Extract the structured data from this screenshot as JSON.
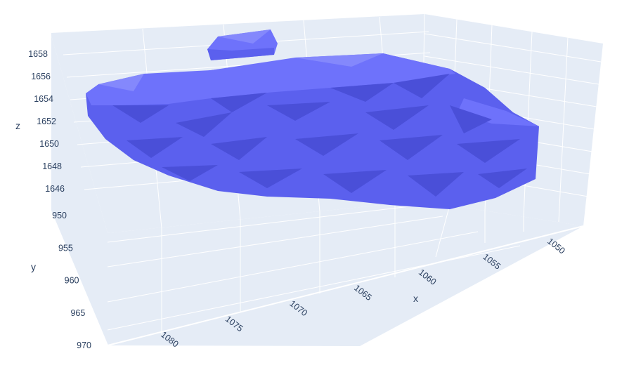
{
  "chart_data": {
    "type": "mesh3d",
    "title": "",
    "colors": {
      "mesh_top": "#6e72fb",
      "mesh_side": "#5b60ee",
      "mesh_shadow": "#4a4fd8",
      "scene_background": "#e5ecf6",
      "grid": "#ffffff",
      "text": "#2a3f5f"
    },
    "axes": {
      "x": {
        "title": "x",
        "range": [
          1048,
          1082
        ],
        "ticks": [
          1050,
          1055,
          1060,
          1065,
          1070,
          1075,
          1080
        ],
        "tick_labels": [
          "1050",
          "1055",
          "1060",
          "1065",
          "1070",
          "1075",
          "1080"
        ]
      },
      "y": {
        "title": "y",
        "range": [
          948,
          971
        ],
        "ticks": [
          950,
          955,
          960,
          965,
          970
        ],
        "tick_labels": [
          "950",
          "955",
          "960",
          "965",
          "970"
        ]
      },
      "z": {
        "title": "z",
        "range": [
          1645,
          1659
        ],
        "ticks": [
          1646,
          1648,
          1650,
          1652,
          1654,
          1656,
          1658
        ],
        "tick_labels": [
          "1646",
          "1648",
          "1650",
          "1652",
          "1654",
          "1656",
          "1658"
        ]
      }
    },
    "grid": true,
    "legend": false
  }
}
